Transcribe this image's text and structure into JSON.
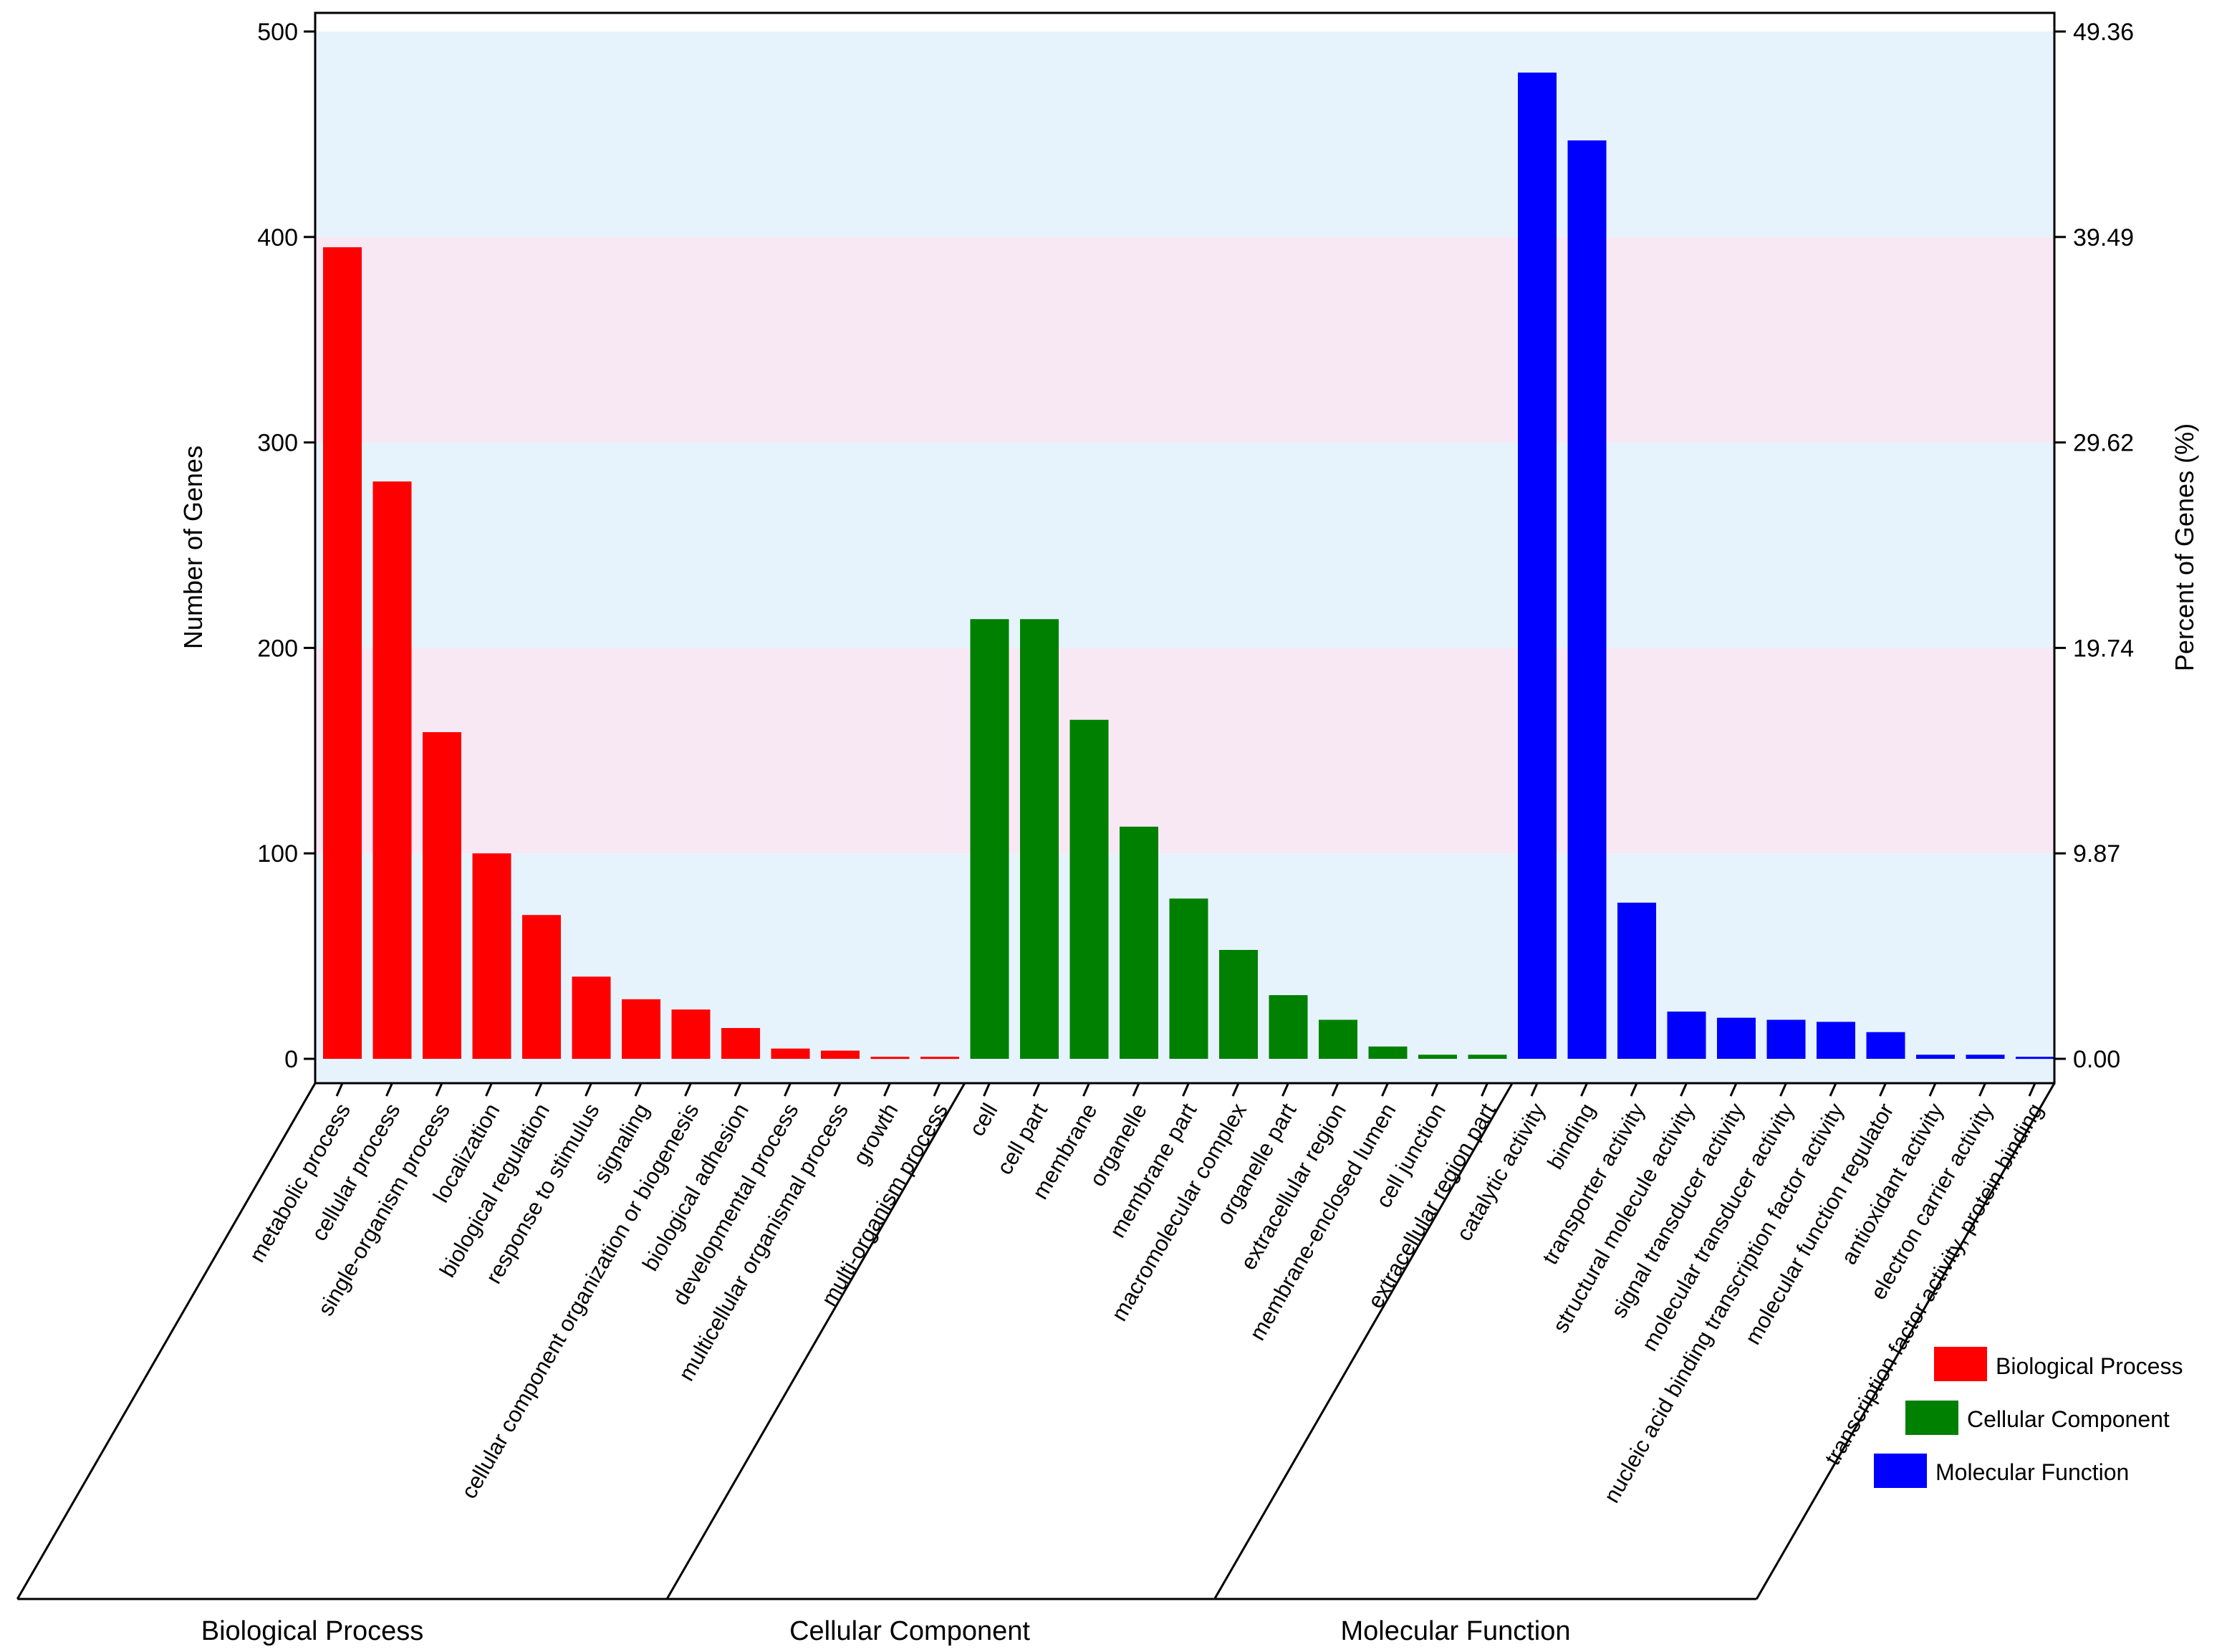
{
  "chart_data": {
    "type": "bar",
    "ylabel_left": "Number of Genes",
    "ylabel_right": "Percent of Genes (%)",
    "ylim": [
      0,
      500
    ],
    "left_ticks": [
      "0",
      "100",
      "200",
      "300",
      "400",
      "500"
    ],
    "right_ticks": [
      "0.00",
      "9.87",
      "19.74",
      "29.62",
      "39.49",
      "49.36"
    ],
    "series": [
      {
        "name": "Biological Process",
        "color": "#ff0000",
        "categories": [
          "metabolic process",
          "cellular process",
          "single-organism process",
          "localization",
          "biological regulation",
          "response to stimulus",
          "signaling",
          "cellular component organization or biogenesis",
          "biological adhesion",
          "developmental process",
          "multicellular organismal process",
          "growth",
          "multi-organism process"
        ],
        "values": [
          395,
          281,
          159,
          100,
          70,
          40,
          29,
          24,
          15,
          5,
          4,
          1,
          1
        ]
      },
      {
        "name": "Cellular Component",
        "color": "#008000",
        "categories": [
          "cell",
          "cell part",
          "membrane",
          "organelle",
          "membrane part",
          "macromolecular complex",
          "organelle part",
          "extracellular region",
          "membrane-enclosed lumen",
          "cell junction",
          "extracellular region part"
        ],
        "values": [
          214,
          214,
          165,
          113,
          78,
          53,
          31,
          19,
          6,
          2,
          2
        ]
      },
      {
        "name": "Molecular Function",
        "color": "#0000ff",
        "categories": [
          "catalytic activity",
          "binding",
          "transporter activity",
          "structural molecule activity",
          "signal transducer activity",
          "molecular transducer activity",
          "nucleic acid binding transcription factor activity",
          "molecular function regulator",
          "antioxidant activity",
          "electron carrier activity",
          "transcription factor activity, protein binding"
        ],
        "values": [
          480,
          447,
          76,
          23,
          20,
          19,
          18,
          13,
          2,
          2,
          1
        ]
      }
    ],
    "bands": [
      "#e6f3fc",
      "#f8e8f4"
    ],
    "group_labels": [
      "Biological Process",
      "Cellular Component",
      "Molecular Function"
    ],
    "legend": [
      {
        "label": "Biological Process",
        "color": "#ff0000"
      },
      {
        "label": "Cellular Component",
        "color": "#008000"
      },
      {
        "label": "Molecular Function",
        "color": "#0000ff"
      }
    ]
  }
}
